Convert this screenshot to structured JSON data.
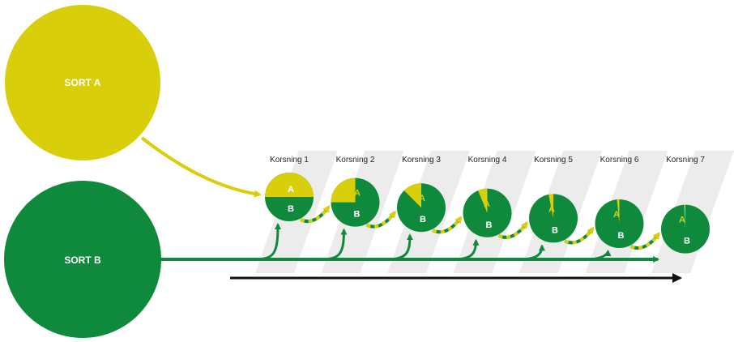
{
  "colors": {
    "sort_a": "#d8cf0a",
    "sort_b": "#0f8a3c",
    "band": "#ececec",
    "axis": "#111111"
  },
  "sort_a": {
    "label": "SORT A"
  },
  "sort_b": {
    "label": "SORT B"
  },
  "circle_labels": {
    "a": "A",
    "b": "B"
  },
  "crossings": [
    {
      "label": "Korsning 1",
      "share_a": 0.5
    },
    {
      "label": "Korsning 2",
      "share_a": 0.25
    },
    {
      "label": "Korsning 3",
      "share_a": 0.125
    },
    {
      "label": "Korsning 4",
      "share_a": 0.0625
    },
    {
      "label": "Korsning 5",
      "share_a": 0.03125
    },
    {
      "label": "Korsning 6",
      "share_a": 0.015625
    },
    {
      "label": "Korsning 7",
      "share_a": 0.0078125
    }
  ]
}
